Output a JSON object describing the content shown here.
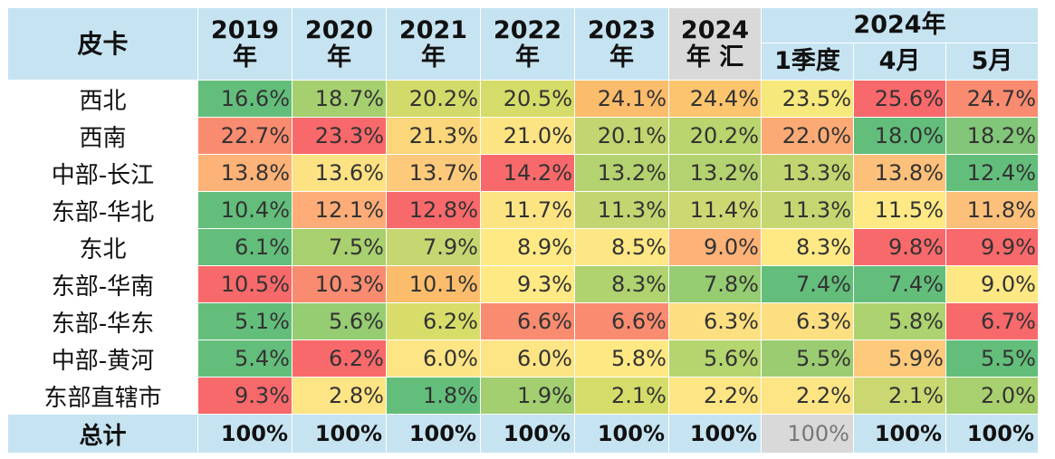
{
  "header": {
    "corner": "皮卡",
    "years": [
      {
        "top": "2019",
        "bottom": "年"
      },
      {
        "top": "2020",
        "bottom": "年"
      },
      {
        "top": "2021",
        "bottom": "年"
      },
      {
        "top": "2022",
        "bottom": "年"
      },
      {
        "top": "2023",
        "bottom": "年"
      },
      {
        "top": "2024",
        "bottom": "年 汇"
      }
    ],
    "group_label": "2024年",
    "sub": [
      "1季度",
      "4月",
      "5月"
    ]
  },
  "rows": [
    {
      "region": "西北",
      "values": [
        "16.6%",
        "18.7%",
        "20.2%",
        "20.5%",
        "24.1%",
        "24.4%",
        "23.5%",
        "25.6%",
        "24.7%"
      ],
      "colors": [
        "#63be7b",
        "#a6d06f",
        "#d2db6a",
        "#d5dc69",
        "#fbbc6c",
        "#fbc46d",
        "#f7e87b",
        "#f8696b",
        "#f98b70"
      ]
    },
    {
      "region": "西南",
      "values": [
        "22.7%",
        "23.3%",
        "21.3%",
        "21.0%",
        "20.1%",
        "20.2%",
        "22.0%",
        "18.0%",
        "18.2%"
      ],
      "colors": [
        "#f98b70",
        "#f8696b",
        "#fbd67a",
        "#fde483",
        "#c2d570",
        "#bad46e",
        "#fcaa75",
        "#63be7b",
        "#82c679"
      ]
    },
    {
      "region": "中部-长江",
      "values": [
        "13.8%",
        "13.6%",
        "13.7%",
        "14.2%",
        "13.2%",
        "13.2%",
        "13.3%",
        "13.8%",
        "12.4%"
      ],
      "colors": [
        "#fdb277",
        "#fde284",
        "#fdc97b",
        "#f8696b",
        "#b4d26f",
        "#b4d26f",
        "#c1d670",
        "#fdc07a",
        "#63be7b"
      ]
    },
    {
      "region": "东部-华北",
      "values": [
        "10.4%",
        "12.1%",
        "12.8%",
        "11.7%",
        "11.3%",
        "11.4%",
        "11.3%",
        "11.5%",
        "11.8%"
      ],
      "colors": [
        "#63be7b",
        "#fdac77",
        "#f8696b",
        "#fde483",
        "#c2d570",
        "#cdd873",
        "#c6d671",
        "#ffe984",
        "#fcc07a"
      ]
    },
    {
      "region": "东北",
      "values": [
        "6.1%",
        "7.5%",
        "7.9%",
        "8.9%",
        "8.5%",
        "9.0%",
        "8.3%",
        "9.8%",
        "9.9%"
      ],
      "colors": [
        "#63be7b",
        "#a9d06f",
        "#c6d671",
        "#ffe984",
        "#fce784",
        "#fdb277",
        "#ffe984",
        "#f8696b",
        "#f8696b"
      ]
    },
    {
      "region": "东部-华南",
      "values": [
        "10.5%",
        "10.3%",
        "10.1%",
        "9.3%",
        "8.3%",
        "7.8%",
        "7.4%",
        "7.4%",
        "9.0%"
      ],
      "colors": [
        "#f8696b",
        "#f98b70",
        "#fbbd6c",
        "#ffe984",
        "#b0d36f",
        "#96cc72",
        "#63be7b",
        "#63be7b",
        "#fde884"
      ]
    },
    {
      "region": "东部-华东",
      "values": [
        "5.1%",
        "5.6%",
        "6.2%",
        "6.6%",
        "6.6%",
        "6.3%",
        "6.3%",
        "5.8%",
        "6.7%"
      ],
      "colors": [
        "#63be7b",
        "#96cc72",
        "#d8dd6a",
        "#f98b70",
        "#f98b70",
        "#fcdf81",
        "#fcdf81",
        "#acd36f",
        "#f8696b"
      ]
    },
    {
      "region": "中部-黄河",
      "values": [
        "5.4%",
        "6.2%",
        "6.0%",
        "6.0%",
        "5.8%",
        "5.6%",
        "5.5%",
        "5.9%",
        "5.5%"
      ],
      "colors": [
        "#63be7b",
        "#f8696b",
        "#fde484",
        "#fde484",
        "#fde884",
        "#b5d56f",
        "#9ccc72",
        "#fdc97b",
        "#63be7b"
      ]
    },
    {
      "region": "东部直辖市",
      "values": [
        "9.3%",
        "2.8%",
        "1.8%",
        "1.9%",
        "2.1%",
        "2.2%",
        "2.2%",
        "2.1%",
        "2.0%"
      ],
      "colors": [
        "#f8696b",
        "#fde484",
        "#63be7b",
        "#a3cf70",
        "#d5dc69",
        "#fde584",
        "#fde584",
        "#cbd871",
        "#a9d06f"
      ]
    }
  ],
  "footer": {
    "label": "总计",
    "values": [
      "100%",
      "100%",
      "100%",
      "100%",
      "100%",
      "100%",
      "100%",
      "100%",
      "100%"
    ]
  }
}
